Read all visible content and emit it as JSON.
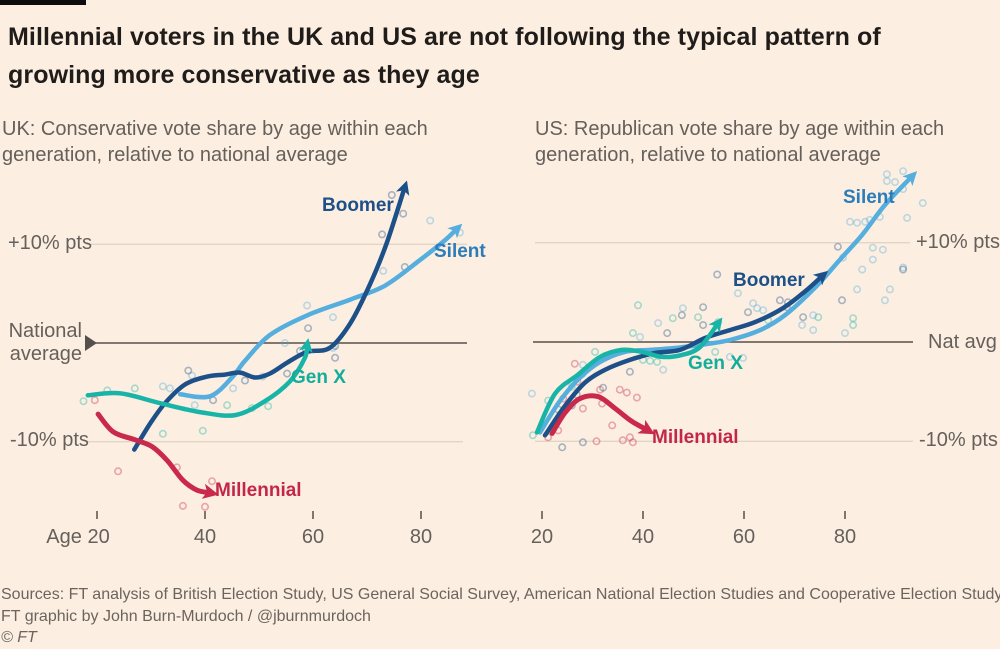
{
  "title": "Millennial voters in the UK and US are not following the typical pattern of growing more conservative as they age",
  "footer": {
    "sources": "Sources: FT analysis of British Election Study, US General Social Survey, American National Election Studies and Cooperative Election Study",
    "credit": "FT graphic by John Burn-Murdoch / @jburnmurdoch",
    "copyright": "© FT"
  },
  "colors": {
    "background": "#fcefe1",
    "title_text": "#201c1a",
    "muted_text": "#66605b",
    "axis_line": "#56504b",
    "gridline": "#e3d5c5"
  },
  "chart_data": [
    {
      "type": "line",
      "region": "UK",
      "title": "UK: Conservative vote share by age within each generation, relative to national average",
      "xlim": [
        16,
        90
      ],
      "ylim": [
        -17,
        16
      ],
      "y_labels": {
        "plus": "+10% pts",
        "zero": "National average",
        "minus": "-10% pts"
      },
      "x_tick_labels": [
        "Age 20",
        "40",
        "60",
        "80"
      ],
      "x_tick_ages": [
        20,
        40,
        60,
        80
      ],
      "series": [
        {
          "name": "Silent",
          "color": "#55aedd",
          "label_color": "#2b7cb8",
          "arrow": true,
          "line": [
            [
              35.4,
              -5.2
            ],
            [
              40.9,
              -5.4
            ],
            [
              45.0,
              -3.5
            ],
            [
              47.4,
              -1.8
            ],
            [
              52.0,
              0.8
            ],
            [
              58.9,
              2.8
            ],
            [
              66.9,
              4.4
            ],
            [
              73.3,
              5.8
            ],
            [
              79.8,
              8.4
            ],
            [
              84.4,
              10.4
            ],
            [
              86.7,
              11.6
            ]
          ],
          "scatter": [
            [
              32.2,
              -4.4
            ],
            [
              33.5,
              -4.6
            ],
            [
              37.6,
              -3.3
            ],
            [
              38.1,
              -6.3
            ],
            [
              45.2,
              -4.6
            ],
            [
              50.7,
              -3.4
            ],
            [
              54.8,
              0
            ],
            [
              58.9,
              3.8
            ],
            [
              63.7,
              2.6
            ],
            [
              63.7,
              -0.5
            ],
            [
              81.7,
              12.4
            ],
            [
              87.2,
              11.2
            ],
            [
              73.0,
              7.3
            ]
          ]
        },
        {
          "name": "Boomer",
          "color": "#1d5088",
          "label_color": "#1d5088",
          "arrow": true,
          "line": [
            [
              26.9,
              -10.8
            ],
            [
              29.8,
              -8.2
            ],
            [
              32.6,
              -6.1
            ],
            [
              36.3,
              -4.2
            ],
            [
              40.4,
              -3.4
            ],
            [
              43.7,
              -3.2
            ],
            [
              46.5,
              -3.0
            ],
            [
              49.3,
              -3.5
            ],
            [
              52.0,
              -3.1
            ],
            [
              55.2,
              -2.0
            ],
            [
              58.9,
              -0.9
            ],
            [
              63.1,
              -0.5
            ],
            [
              66.9,
              2.0
            ],
            [
              70.6,
              6.0
            ],
            [
              73.7,
              10.2
            ],
            [
              77.0,
              15.8
            ]
          ],
          "scatter": [
            [
              36.9,
              -2.8
            ],
            [
              41.5,
              -5.8
            ],
            [
              47.4,
              -3.8
            ],
            [
              55.2,
              -3.1
            ],
            [
              57.6,
              -0.8
            ],
            [
              59.1,
              1.5
            ],
            [
              64.1,
              -0.3
            ],
            [
              64.1,
              -1.5
            ],
            [
              72.8,
              11.0
            ],
            [
              74.6,
              15.0
            ],
            [
              76.7,
              13.1
            ],
            [
              77.0,
              7.7
            ]
          ]
        },
        {
          "name": "Gen X",
          "color": "#19b4a8",
          "label_color": "#14ad9c",
          "arrow": true,
          "line": [
            [
              18.3,
              -5.3
            ],
            [
              24.3,
              -5.1
            ],
            [
              31.7,
              -6.1
            ],
            [
              39.1,
              -7.0
            ],
            [
              45.6,
              -7.3
            ],
            [
              51.1,
              -5.9
            ],
            [
              55.7,
              -3.9
            ],
            [
              58.5,
              -1.5
            ],
            [
              58.9,
              -0.2
            ]
          ],
          "scatter": [
            [
              17.5,
              -5.9
            ],
            [
              21.9,
              -4.8
            ],
            [
              27.0,
              -4.6
            ],
            [
              32.2,
              -9.2
            ],
            [
              39.6,
              -8.9
            ],
            [
              44.1,
              -6.3
            ],
            [
              48.7,
              -6.6
            ],
            [
              51.7,
              -6.4
            ]
          ]
        },
        {
          "name": "Millennial",
          "color": "#c9294a",
          "label_color": "#c42649",
          "arrow": true,
          "line": [
            [
              20.2,
              -7.2
            ],
            [
              23.0,
              -9.0
            ],
            [
              27.0,
              -9.8
            ],
            [
              30.2,
              -10.5
            ],
            [
              33.0,
              -11.9
            ],
            [
              35.9,
              -13.9
            ],
            [
              38.5,
              -14.9
            ],
            [
              41.1,
              -15.2
            ]
          ],
          "scatter": [
            [
              19.6,
              -5.8
            ],
            [
              23.9,
              -13.0
            ],
            [
              34.8,
              -12.6
            ],
            [
              35.9,
              -16.5
            ],
            [
              40.0,
              -16.6
            ],
            [
              41.3,
              -14.0
            ]
          ]
        }
      ]
    },
    {
      "type": "line",
      "region": "US",
      "title": "US: Republican vote share by age within each generation, relative to national average",
      "xlim": [
        17,
        96
      ],
      "ylim": [
        -17,
        18
      ],
      "y_labels": {
        "plus": "+10% pts",
        "zero": "Nat avg",
        "minus": "-10% pts"
      },
      "x_tick_labels": [
        "20",
        "40",
        "60",
        "80"
      ],
      "x_tick_ages": [
        20,
        40,
        60,
        80
      ],
      "series": [
        {
          "name": "Silent",
          "color": "#55aedd",
          "label_color": "#2b7cb8",
          "arrow": true,
          "line": [
            [
              19.6,
              -9.1
            ],
            [
              23.6,
              -5.9
            ],
            [
              27.5,
              -3.6
            ],
            [
              31.5,
              -2.0
            ],
            [
              36.4,
              -1.0
            ],
            [
              41.4,
              -0.8
            ],
            [
              46.3,
              -0.6
            ],
            [
              51.3,
              -0.3
            ],
            [
              57.2,
              0.2
            ],
            [
              63.2,
              1.2
            ],
            [
              68.1,
              2.7
            ],
            [
              74.1,
              5.5
            ],
            [
              79.0,
              8.3
            ],
            [
              83.4,
              10.8
            ],
            [
              87.9,
              13.8
            ],
            [
              93.3,
              16.7
            ]
          ],
          "scatter": [
            [
              39.4,
              0.5
            ],
            [
              44.0,
              -2.8
            ],
            [
              47.9,
              3.4
            ],
            [
              57.2,
              -1.5
            ],
            [
              59.8,
              -1.6
            ],
            [
              62.6,
              3.4
            ],
            [
              63.8,
              3.2
            ],
            [
              58.8,
              4.9
            ],
            [
              43.0,
              1.9
            ],
            [
              61.8,
              3.9
            ],
            [
              73.1,
              5.3
            ],
            [
              85.5,
              8.3
            ],
            [
              88.9,
              5.3
            ],
            [
              95.4,
              14.0
            ],
            [
              88.3,
              16.9
            ],
            [
              91.5,
              15.4
            ],
            [
              91.5,
              17.2
            ],
            [
              88.3,
              16.2
            ],
            [
              89.9,
              16.1
            ],
            [
              86.9,
              12.6
            ],
            [
              81.0,
              12.1
            ],
            [
              82.4,
              12.0
            ],
            [
              84.0,
              12.1
            ],
            [
              84.9,
              12.3
            ],
            [
              92.3,
              12.5
            ],
            [
              79.6,
              8.5
            ],
            [
              85.5,
              9.5
            ],
            [
              87.5,
              9.3
            ],
            [
              83.4,
              7.3
            ],
            [
              91.5,
              7.5
            ],
            [
              82.4,
              5.3
            ],
            [
              87.9,
              4.2
            ],
            [
              73.7,
              2.7
            ],
            [
              71.5,
              1.7
            ],
            [
              73.7,
              1.2
            ],
            [
              80.0,
              0.9
            ],
            [
              18.0,
              -5.2
            ],
            [
              28.1,
              -2.3
            ]
          ]
        },
        {
          "name": "Boomer",
          "color": "#1d5088",
          "label_color": "#1d5088",
          "arrow": true,
          "line": [
            [
              20.6,
              -9.4
            ],
            [
              24.6,
              -6.4
            ],
            [
              28.5,
              -4.1
            ],
            [
              32.5,
              -2.8
            ],
            [
              37.4,
              -1.8
            ],
            [
              42.4,
              -1.1
            ],
            [
              47.3,
              -0.8
            ],
            [
              52.3,
              0.4
            ],
            [
              57.2,
              1.2
            ],
            [
              62.2,
              2.0
            ],
            [
              67.7,
              3.4
            ],
            [
              72.1,
              5.1
            ],
            [
              75.6,
              6.7
            ]
          ],
          "scatter": [
            [
              25.9,
              -6.4
            ],
            [
              32.1,
              -4.6
            ],
            [
              37.4,
              -3.0
            ],
            [
              44.8,
              0.9
            ],
            [
              51.9,
              3.5
            ],
            [
              51.9,
              1.7
            ],
            [
              60.8,
              3.0
            ],
            [
              24.0,
              -10.6
            ],
            [
              28.1,
              -10.1
            ],
            [
              47.7,
              2.7
            ],
            [
              68.5,
              3.5
            ],
            [
              78.6,
              9.6
            ],
            [
              79.4,
              4.2
            ],
            [
              67.1,
              4.2
            ],
            [
              68.7,
              4.0
            ],
            [
              71.7,
              2.5
            ],
            [
              54.7,
              6.8
            ],
            [
              91.5,
              7.3
            ],
            [
              23.2,
              -6.8
            ],
            [
              26.9,
              -5.3
            ]
          ]
        },
        {
          "name": "Gen X",
          "color": "#19b4a8",
          "label_color": "#14ad9c",
          "arrow": true,
          "line": [
            [
              19.0,
              -9.1
            ],
            [
              22.6,
              -5.2
            ],
            [
              27.1,
              -3.3
            ],
            [
              31.5,
              -1.5
            ],
            [
              35.8,
              -0.8
            ],
            [
              39.8,
              -1.0
            ],
            [
              43.8,
              -1.5
            ],
            [
              47.7,
              -1.3
            ],
            [
              51.3,
              -0.5
            ],
            [
              54.9,
              1.9
            ]
          ],
          "scatter": [
            [
              21.2,
              -5.9
            ],
            [
              25.9,
              -4.5
            ],
            [
              30.5,
              -1.0
            ],
            [
              38.0,
              0.9
            ],
            [
              40.0,
              -1.8
            ],
            [
              41.4,
              -1.9
            ],
            [
              42.8,
              -2.0
            ],
            [
              45.9,
              2.4
            ],
            [
              54.3,
              -1.0
            ],
            [
              54.9,
              2.0
            ],
            [
              64.8,
              2.2
            ],
            [
              39.0,
              3.7
            ],
            [
              50.9,
              2.5
            ],
            [
              81.6,
              2.4
            ],
            [
              74.7,
              2.5
            ],
            [
              81.6,
              1.7
            ],
            [
              18.2,
              -9.4
            ],
            [
              28.0,
              -3.2
            ]
          ]
        },
        {
          "name": "Millennial",
          "color": "#c9294a",
          "label_color": "#c42649",
          "arrow": true,
          "line": [
            [
              22.0,
              -9.2
            ],
            [
              24.6,
              -7.1
            ],
            [
              27.5,
              -5.7
            ],
            [
              31.1,
              -5.5
            ],
            [
              34.5,
              -6.7
            ],
            [
              37.8,
              -8.0
            ],
            [
              41.0,
              -8.9
            ]
          ],
          "scatter": [
            [
              24.2,
              -5.7
            ],
            [
              28.1,
              -6.7
            ],
            [
              31.5,
              -4.8
            ],
            [
              31.9,
              -6.2
            ],
            [
              35.4,
              -4.8
            ],
            [
              36.8,
              -5.1
            ],
            [
              38.8,
              -5.6
            ],
            [
              33.9,
              -8.4
            ],
            [
              37.4,
              -9.6
            ],
            [
              21.2,
              -9.6
            ],
            [
              38.0,
              -10.1
            ],
            [
              23.2,
              -8.9
            ],
            [
              26.5,
              -2.2
            ],
            [
              30.8,
              -10.0
            ],
            [
              36.0,
              -9.9
            ],
            [
              27.0,
              -4.0
            ]
          ]
        }
      ]
    }
  ]
}
